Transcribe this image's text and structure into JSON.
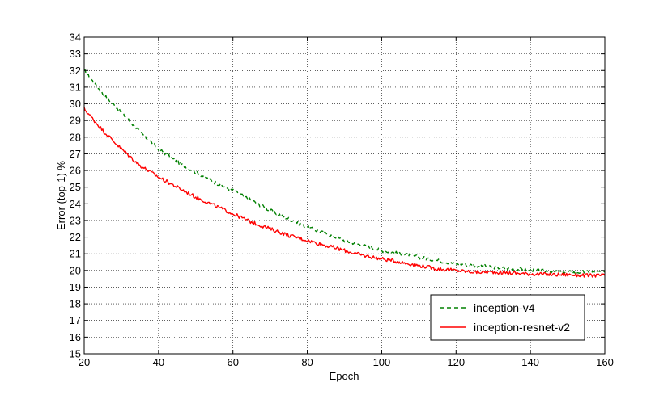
{
  "chart_data": {
    "type": "line",
    "xlabel": "Epoch",
    "ylabel": "Error (top-1) %",
    "xlim": [
      20,
      160
    ],
    "ylim": [
      15,
      34
    ],
    "xticks": [
      20,
      40,
      60,
      80,
      100,
      120,
      140,
      160
    ],
    "yticks": [
      15,
      16,
      17,
      18,
      19,
      20,
      21,
      22,
      23,
      24,
      25,
      26,
      27,
      28,
      29,
      30,
      31,
      32,
      33,
      34
    ],
    "grid": true,
    "legend_position": "lower-right",
    "series": [
      {
        "name": "inception-v4",
        "style": "dashed",
        "color": "#008000",
        "x": [
          20,
          25,
          30,
          35,
          40,
          45,
          50,
          55,
          60,
          65,
          70,
          75,
          80,
          85,
          90,
          95,
          100,
          105,
          110,
          115,
          120,
          125,
          130,
          135,
          140,
          145,
          150,
          155,
          160
        ],
        "y": [
          32.0,
          30.6,
          29.5,
          28.3,
          27.3,
          26.5,
          25.9,
          25.3,
          24.8,
          24.2,
          23.6,
          23.1,
          22.6,
          22.2,
          21.8,
          21.5,
          21.2,
          21.0,
          20.8,
          20.6,
          20.4,
          20.3,
          20.2,
          20.1,
          20.0,
          19.95,
          19.9,
          19.9,
          19.9
        ]
      },
      {
        "name": "inception-resnet-v2",
        "style": "solid",
        "color": "#ff0000",
        "x": [
          20,
          25,
          30,
          35,
          40,
          45,
          50,
          55,
          60,
          65,
          70,
          75,
          80,
          85,
          90,
          95,
          100,
          105,
          110,
          115,
          120,
          125,
          130,
          135,
          140,
          145,
          150,
          155,
          160
        ],
        "y": [
          29.7,
          28.4,
          27.3,
          26.3,
          25.6,
          25.0,
          24.4,
          23.9,
          23.4,
          22.9,
          22.5,
          22.1,
          21.8,
          21.5,
          21.2,
          20.9,
          20.7,
          20.5,
          20.3,
          20.1,
          20.0,
          19.9,
          19.9,
          19.85,
          19.8,
          19.75,
          19.75,
          19.7,
          19.7
        ]
      }
    ]
  }
}
